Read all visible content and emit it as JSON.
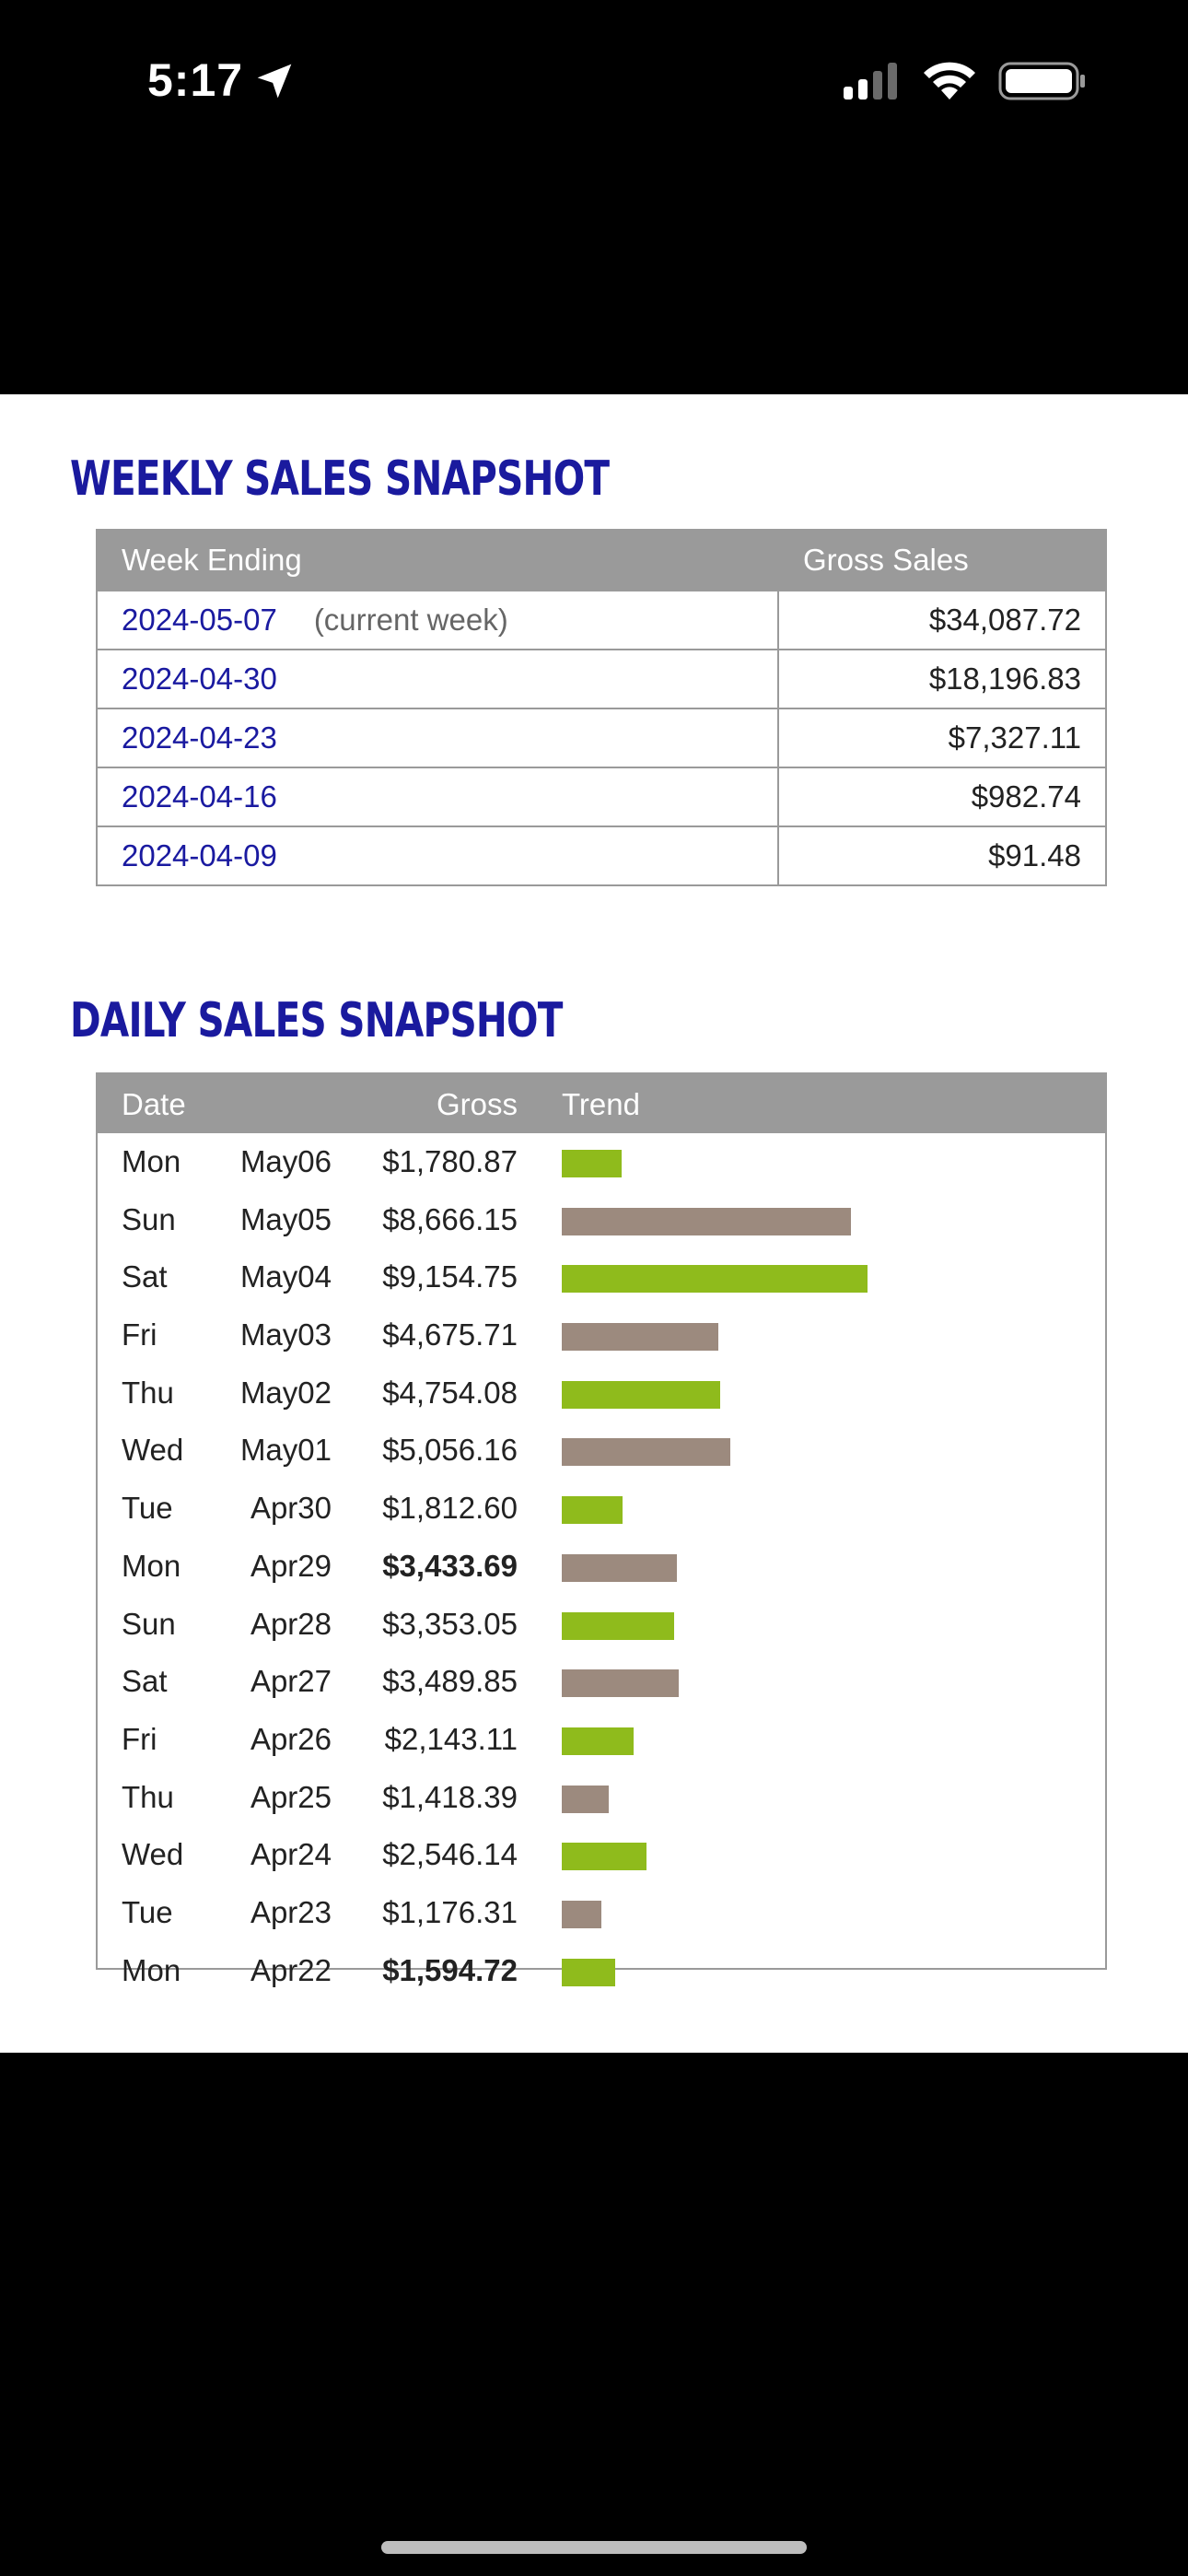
{
  "status_bar": {
    "time": "5:17"
  },
  "weekly": {
    "title": "WEEKLY SALES SNAPSHOT",
    "headers": {
      "week": "Week Ending",
      "gross": "Gross Sales"
    },
    "rows": [
      {
        "week": "2024-05-07",
        "note": "(current week)",
        "amount": "$34,087.72"
      },
      {
        "week": "2024-04-30",
        "note": "",
        "amount": "$18,196.83"
      },
      {
        "week": "2024-04-23",
        "note": "",
        "amount": "$7,327.11"
      },
      {
        "week": "2024-04-16",
        "note": "",
        "amount": "$982.74"
      },
      {
        "week": "2024-04-09",
        "note": "",
        "amount": "$91.48"
      }
    ]
  },
  "daily": {
    "title": "DAILY SALES SNAPSHOT",
    "headers": {
      "date": "Date",
      "gross": "Gross",
      "trend": "Trend"
    },
    "colors": {
      "green": "#8fbb1c",
      "taupe": "#9c8a7e"
    },
    "rows": [
      {
        "day": "Mon",
        "date": "May06",
        "gross": "$1,780.87",
        "value": 1780.87,
        "bold": false,
        "color": "green"
      },
      {
        "day": "Sun",
        "date": "May05",
        "gross": "$8,666.15",
        "value": 8666.15,
        "bold": false,
        "color": "taupe"
      },
      {
        "day": "Sat",
        "date": "May04",
        "gross": "$9,154.75",
        "value": 9154.75,
        "bold": false,
        "color": "green"
      },
      {
        "day": "Fri",
        "date": "May03",
        "gross": "$4,675.71",
        "value": 4675.71,
        "bold": false,
        "color": "taupe"
      },
      {
        "day": "Thu",
        "date": "May02",
        "gross": "$4,754.08",
        "value": 4754.08,
        "bold": false,
        "color": "green"
      },
      {
        "day": "Wed",
        "date": "May01",
        "gross": "$5,056.16",
        "value": 5056.16,
        "bold": false,
        "color": "taupe"
      },
      {
        "day": "Tue",
        "date": "Apr30",
        "gross": "$1,812.60",
        "value": 1812.6,
        "bold": false,
        "color": "green"
      },
      {
        "day": "Mon",
        "date": "Apr29",
        "gross": "$3,433.69",
        "value": 3433.69,
        "bold": true,
        "color": "taupe"
      },
      {
        "day": "Sun",
        "date": "Apr28",
        "gross": "$3,353.05",
        "value": 3353.05,
        "bold": false,
        "color": "green"
      },
      {
        "day": "Sat",
        "date": "Apr27",
        "gross": "$3,489.85",
        "value": 3489.85,
        "bold": false,
        "color": "taupe"
      },
      {
        "day": "Fri",
        "date": "Apr26",
        "gross": "$2,143.11",
        "value": 2143.11,
        "bold": false,
        "color": "green"
      },
      {
        "day": "Thu",
        "date": "Apr25",
        "gross": "$1,418.39",
        "value": 1418.39,
        "bold": false,
        "color": "taupe"
      },
      {
        "day": "Wed",
        "date": "Apr24",
        "gross": "$2,546.14",
        "value": 2546.14,
        "bold": false,
        "color": "green"
      },
      {
        "day": "Tue",
        "date": "Apr23",
        "gross": "$1,176.31",
        "value": 1176.31,
        "bold": false,
        "color": "taupe"
      },
      {
        "day": "Mon",
        "date": "Apr22",
        "gross": "$1,594.72",
        "value": 1594.72,
        "bold": true,
        "color": "green"
      }
    ]
  }
}
